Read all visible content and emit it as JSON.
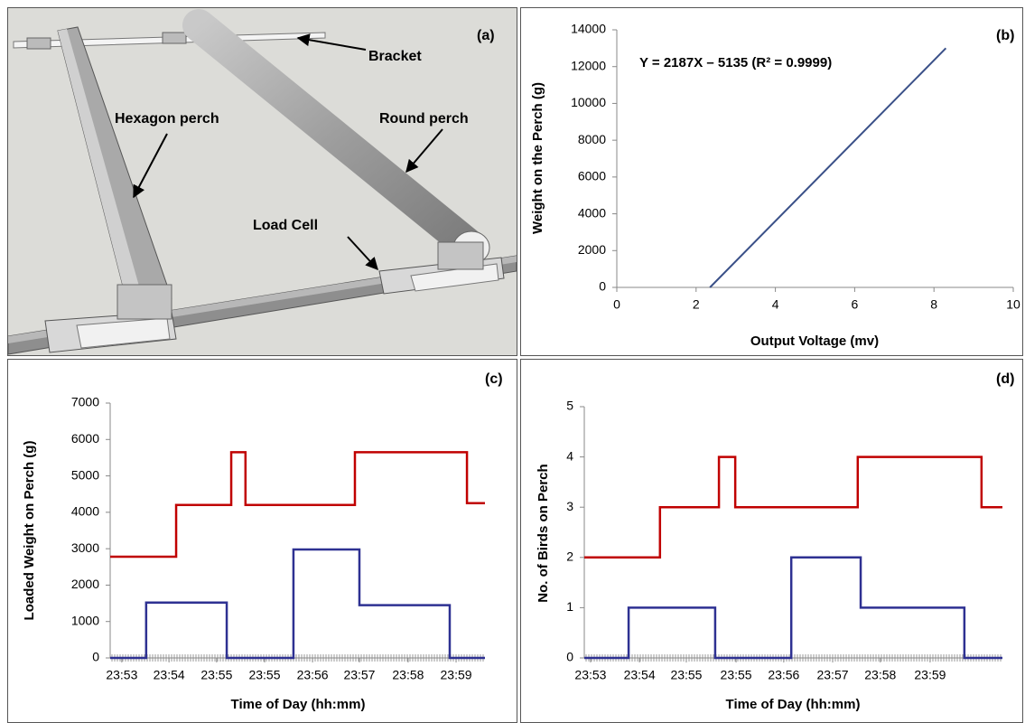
{
  "diagram": {
    "panel_label": "(a)",
    "labels": [
      "Bracket",
      "Hexagon perch",
      "Round perch",
      "Load Cell"
    ]
  },
  "chart_data": [
    {
      "type": "line",
      "panel_label": "(b)",
      "annotation": "Y = 2187X – 5135 (R² = 0.9999)",
      "xlabel": "Output Voltage (mv)",
      "ylabel": "Weight on the Perch (g)",
      "x": [
        2.35,
        8.3
      ],
      "series": [
        {
          "color": "#3a5088",
          "values": [
            0,
            13000
          ]
        }
      ],
      "xlim": [
        0,
        10
      ],
      "xticks": [
        0,
        2,
        4,
        6,
        8,
        10
      ],
      "ylim": [
        0,
        14000
      ],
      "yticks": [
        0,
        2000,
        4000,
        6000,
        8000,
        10000,
        12000,
        14000
      ],
      "grid": false
    },
    {
      "type": "step",
      "panel_label": "(c)",
      "xlabel": "Time of Day (hh:mm)",
      "ylabel": "Loaded Weight on Perch (g)",
      "series": [
        {
          "color": "#c00000",
          "x": [
            0,
            17.6,
            17.6,
            32.3,
            32.3,
            36.1,
            36.1,
            65.3,
            65.3,
            95.2,
            95.2,
            100
          ],
          "values": [
            2780,
            2780,
            4200,
            4200,
            5650,
            5650,
            4200,
            4200,
            5650,
            5650,
            4250,
            4250
          ]
        },
        {
          "color": "#2e3192",
          "x": [
            0,
            9.6,
            9.6,
            31.1,
            31.1,
            48.9,
            48.9,
            66.5,
            66.5,
            90.6,
            90.6,
            100
          ],
          "values": [
            0,
            0,
            1520,
            1520,
            0,
            0,
            2980,
            2980,
            1450,
            1450,
            0,
            0
          ]
        }
      ],
      "xlim": [
        0,
        100
      ],
      "xticks": [
        {
          "value": 3.1,
          "label": "23:53"
        },
        {
          "value": 15.7,
          "label": "23:54"
        },
        {
          "value": 28.4,
          "label": "23:55"
        },
        {
          "value": 41.2,
          "label": "23:55"
        },
        {
          "value": 54.0,
          "label": "23:56"
        },
        {
          "value": 66.5,
          "label": "23:57"
        },
        {
          "value": 79.5,
          "label": "23:58"
        },
        {
          "value": 92.3,
          "label": "23:59"
        }
      ],
      "ylim": [
        0,
        7000
      ],
      "yticks": [
        0,
        1000,
        2000,
        3000,
        4000,
        5000,
        6000,
        7000
      ],
      "grid": false
    },
    {
      "type": "step",
      "panel_label": "(d)",
      "xlabel": "Time of Day (hh:mm)",
      "ylabel": "No. of Birds on Perch",
      "series": [
        {
          "color": "#c00000",
          "x": [
            0,
            18.1,
            18.1,
            32.2,
            32.2,
            36.1,
            36.1,
            65.4,
            65.4,
            95.0,
            95.0,
            100
          ],
          "values": [
            2,
            2,
            3,
            3,
            4,
            4,
            3,
            3,
            4,
            4,
            3,
            3
          ]
        },
        {
          "color": "#2e3192",
          "x": [
            0,
            10.6,
            10.6,
            31.3,
            31.3,
            49.5,
            49.5,
            66.1,
            66.1,
            90.9,
            90.9,
            100
          ],
          "values": [
            0,
            0,
            1,
            1,
            0,
            0,
            2,
            2,
            1,
            1,
            0,
            0
          ]
        }
      ],
      "xlim": [
        0,
        100
      ],
      "xticks": [
        {
          "value": 1.5,
          "label": "23:53"
        },
        {
          "value": 13.2,
          "label": "23:54"
        },
        {
          "value": 24.4,
          "label": "23:55"
        },
        {
          "value": 36.3,
          "label": "23:55"
        },
        {
          "value": 47.7,
          "label": "23:56"
        },
        {
          "value": 59.4,
          "label": "23:57"
        },
        {
          "value": 70.8,
          "label": "23:58"
        },
        {
          "value": 82.7,
          "label": "23:59"
        }
      ],
      "ylim": [
        0,
        5
      ],
      "yticks": [
        0,
        1,
        2,
        3,
        4,
        5
      ],
      "grid": false
    }
  ]
}
